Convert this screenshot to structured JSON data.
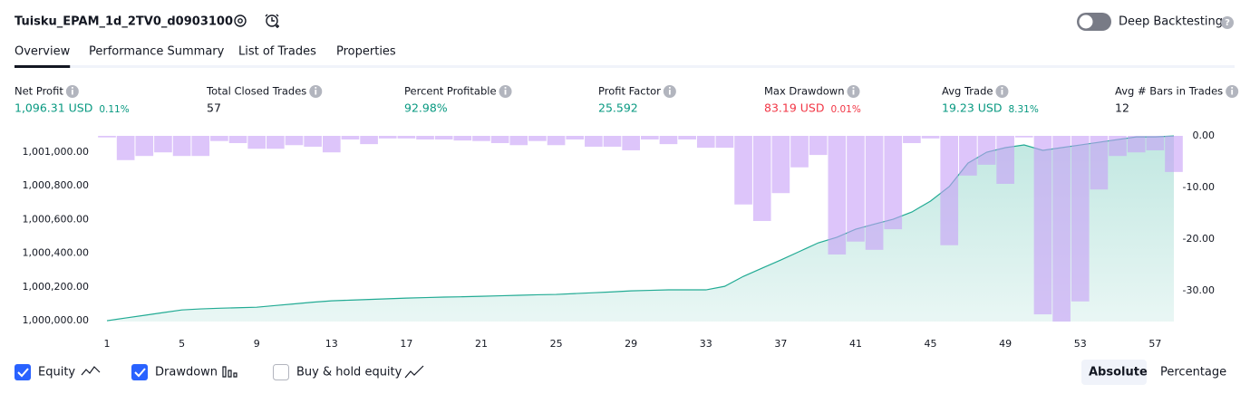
{
  "header": {
    "title": "Tuisku_EPAM_1d_2TV0_d0903100",
    "toggle_label": "Deep Backtesting",
    "toggle_on": false
  },
  "tabs": [
    "Overview",
    "Performance Summary",
    "List of Trades",
    "Properties"
  ],
  "active_tab": 0,
  "metrics": [
    {
      "label": "Net Profit",
      "value": "1,096.31 USD",
      "change": "0.11%",
      "tone": "positive"
    },
    {
      "label": "Total Closed Trades",
      "value": "57",
      "tone": "neutral"
    },
    {
      "label": "Percent Profitable",
      "value": "92.98%",
      "tone": "positive"
    },
    {
      "label": "Profit Factor",
      "value": "25.592",
      "tone": "positive"
    },
    {
      "label": "Max Drawdown",
      "value": "83.19 USD",
      "change": "0.01%",
      "tone": "negative"
    },
    {
      "label": "Avg Trade",
      "value": "19.23 USD",
      "change": "8.31%",
      "tone": "positive"
    },
    {
      "label": "Avg # Bars in Trades",
      "value": "12",
      "tone": "neutral"
    }
  ],
  "chart_data": {
    "type": "combo",
    "x": [
      1,
      2,
      3,
      4,
      5,
      6,
      7,
      8,
      9,
      10,
      11,
      12,
      13,
      14,
      15,
      16,
      17,
      18,
      19,
      20,
      21,
      22,
      23,
      24,
      25,
      26,
      27,
      28,
      29,
      30,
      31,
      32,
      33,
      34,
      35,
      36,
      37,
      38,
      39,
      40,
      41,
      42,
      43,
      44,
      45,
      46,
      47,
      48,
      49,
      50,
      51,
      52,
      53,
      54,
      55,
      56,
      57,
      58
    ],
    "xlim": [
      1,
      58
    ],
    "xticks": [
      1,
      5,
      9,
      13,
      17,
      21,
      25,
      29,
      33,
      37,
      41,
      45,
      49,
      53,
      57
    ],
    "ylim": [
      999995,
      1001097
    ],
    "yticks": [
      {
        "value": 1000000,
        "label": "1,000,000.00"
      },
      {
        "value": 1000200,
        "label": "1,000,200.00"
      },
      {
        "value": 1000400,
        "label": "1,000,400.00"
      },
      {
        "value": 1000600,
        "label": "1,000,600.00"
      },
      {
        "value": 1000800,
        "label": "1,000,800.00"
      },
      {
        "value": 1001000,
        "label": "1,001,000.00"
      }
    ],
    "y2lim": [
      -36,
      0
    ],
    "y2ticks": [
      {
        "value": 0,
        "label": "0.00"
      },
      {
        "value": -10,
        "label": "-10.00"
      },
      {
        "value": -20,
        "label": "-20.00"
      },
      {
        "value": -30,
        "label": "-30.00"
      }
    ],
    "series": [
      {
        "name": "Equity",
        "type": "area",
        "color": "#22ab94",
        "checked": true,
        "values": [
          1000000,
          1000016,
          1000032,
          1000048,
          1000064,
          1000070,
          1000074,
          1000077,
          1000080,
          1000090,
          1000100,
          1000110,
          1000118,
          1000122,
          1000126,
          1000130,
          1000134,
          1000137,
          1000140,
          1000142,
          1000145,
          1000148,
          1000151,
          1000154,
          1000156,
          1000161,
          1000166,
          1000171,
          1000177,
          1000180,
          1000183,
          1000183,
          1000183,
          1000204,
          1000263,
          1000312,
          1000360,
          1000411,
          1000462,
          1000495,
          1000543,
          1000573,
          1000602,
          1000645,
          1000710,
          1000796,
          1000935,
          1001000,
          1001027,
          1001043,
          1001011,
          1001027,
          1001043,
          1001059,
          1001075,
          1001091,
          1001091,
          1001096.31
        ]
      },
      {
        "name": "Drawdown",
        "type": "bar",
        "axis": "y2",
        "color": "#c79ef7",
        "checked": true,
        "values": [
          -0.3,
          -4.7,
          -3.9,
          -3.2,
          -3.9,
          -3.9,
          -1.0,
          -1.4,
          -2.5,
          -2.5,
          -1.8,
          -2.1,
          -3.2,
          -0.7,
          -1.6,
          -0.5,
          -0.5,
          -0.7,
          -0.7,
          -0.9,
          -1.0,
          -1.4,
          -1.8,
          -1.0,
          -1.8,
          -0.7,
          -2.1,
          -2.1,
          -2.8,
          -0.7,
          -1.6,
          -0.7,
          -2.3,
          -2.3,
          -13.3,
          -16.5,
          -11.1,
          -6.1,
          -3.7,
          -23.0,
          -20.5,
          -22.1,
          -18.1,
          -1.4,
          -0.5,
          -21.2,
          -7.7,
          -5.6,
          -9.3,
          -0.3,
          -34.6,
          -36.0,
          -32.1,
          -10.4,
          -3.9,
          -3.2,
          -2.8,
          -7.0
        ]
      }
    ],
    "extra_legend": {
      "name": "Buy & hold equity",
      "checked": false
    }
  },
  "view_buttons": [
    "Absolute",
    "Percentage"
  ],
  "active_view": 0
}
